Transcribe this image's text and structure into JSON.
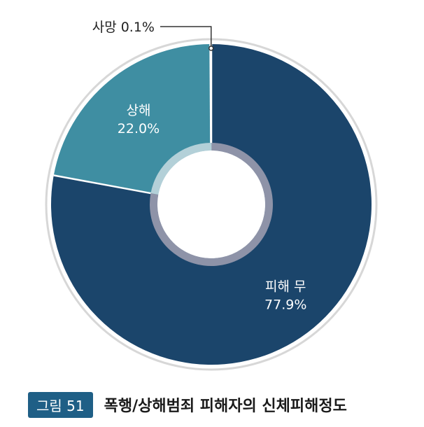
{
  "chart_data": {
    "type": "pie",
    "variant": "donut",
    "slices": [
      {
        "label": "피해 무",
        "value": 77.9,
        "display": "77.9%",
        "color": "#1b456b"
      },
      {
        "label": "상해",
        "value": 22.0,
        "display": "22.0%",
        "color": "#3f8ea2"
      },
      {
        "label": "사망",
        "value": 0.1,
        "display": "0.1%",
        "color": "#c9d6de"
      }
    ],
    "callout": {
      "text": "사망 0.1%"
    },
    "colors": {
      "outer_ring": "#d7d7d7",
      "inner_ring_main": "#8e93a8",
      "inner_ring_secondary": "#b3d0d8",
      "separator": "#ffffff"
    }
  },
  "caption": {
    "badge": "그림 51",
    "title": "폭행/상해범죄 피해자의 신체피해정도",
    "badge_color": "#1f5f86"
  }
}
